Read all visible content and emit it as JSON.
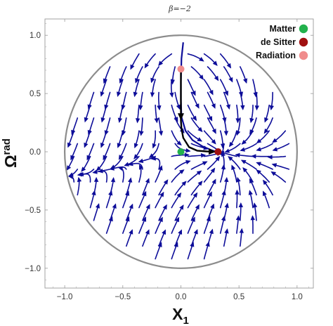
{
  "chart_data": {
    "type": "streamplot",
    "title": "β=−2",
    "xlabel": "X",
    "xlabel_sub": "1",
    "ylabel": "Ω",
    "ylabel_sup": "rad",
    "xlim": [
      -1.17,
      1.14
    ],
    "ylim": [
      -1.17,
      1.14
    ],
    "x_ticks": [
      -1.0,
      -0.5,
      0.0,
      0.5,
      1.0
    ],
    "x_tick_labels": [
      "−1.0",
      "−0.5",
      "0.0",
      "0.5",
      "1.0"
    ],
    "y_ticks": [
      -1.0,
      -0.5,
      0.0,
      0.5,
      1.0
    ],
    "y_tick_labels": [
      "−1.0",
      "−0.5",
      "0.0",
      "0.5",
      "1.0"
    ],
    "boundary": {
      "shape": "unit circle",
      "center": [
        0,
        0
      ],
      "radius": 1.0,
      "color": "#8c8c8c"
    },
    "stream_color": "#0d0d99",
    "trajectory_color": "#000000",
    "legend_position": "top-right",
    "critical_points": [
      {
        "name": "Matter",
        "x": 0.0,
        "y": 0.0,
        "color": "#22b14c"
      },
      {
        "name": "de Sitter",
        "x": 0.32,
        "y": 0.0,
        "color": "#a01010"
      },
      {
        "name": "Radiation",
        "x": 0.0,
        "y": 0.71,
        "color": "#f08c8c"
      }
    ],
    "trajectory": {
      "description": "Radiation → Matter-like deceleration → de Sitter",
      "points": [
        [
          0.0,
          0.71
        ],
        [
          0.0,
          0.55
        ],
        [
          0.0,
          0.4
        ],
        [
          0.0,
          0.27
        ],
        [
          0.005,
          0.2
        ],
        [
          0.02,
          0.12
        ],
        [
          0.07,
          0.04
        ],
        [
          0.14,
          0.01
        ],
        [
          0.22,
          0.003
        ],
        [
          0.3,
          0.0
        ]
      ]
    },
    "upper_separatrix": {
      "points": [
        [
          0.02,
          0.94
        ],
        [
          0.005,
          0.8
        ],
        [
          0.0,
          0.6
        ],
        [
          0.0,
          0.45
        ],
        [
          0.005,
          0.3
        ],
        [
          0.04,
          0.18
        ],
        [
          0.1,
          0.1
        ],
        [
          0.18,
          0.05
        ],
        [
          0.26,
          0.015
        ],
        [
          0.3,
          0.002
        ]
      ]
    }
  }
}
